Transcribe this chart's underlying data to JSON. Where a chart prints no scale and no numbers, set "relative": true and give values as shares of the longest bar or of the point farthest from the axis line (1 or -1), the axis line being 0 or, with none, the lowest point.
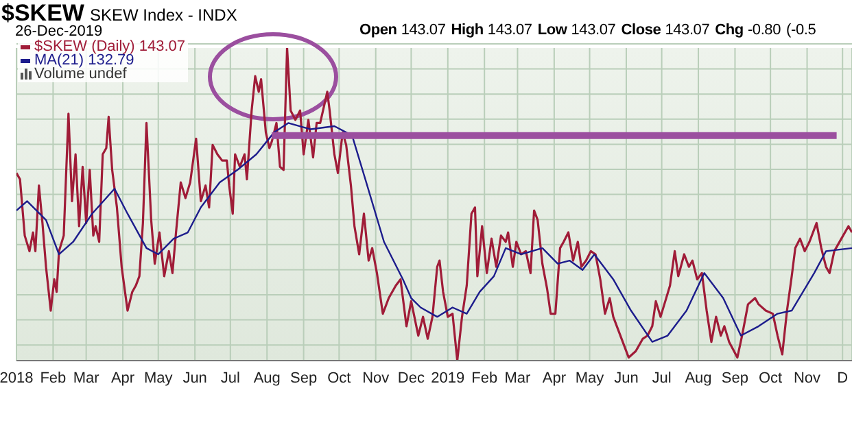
{
  "chart_data": {
    "type": "line",
    "title": "$SKEW",
    "subtitle": "SKEW Index - INDX",
    "relative": true,
    "legend": "top left",
    "grid": true,
    "marker": "none",
    "line_style": "solid",
    "annotations": [
      "26-Dec-2019",
      "Open 143.07 High 143.07 Low 143.07 Close 143.07 Chg -0.80 (-0.5",
      "Volume undef"
    ],
    "xlim": [
      "2018-01-01",
      "2019-12-09"
    ],
    "xticks": [
      {
        "value": "2018-01-01",
        "label": "2018"
      },
      {
        "value": "2018-02-01",
        "label": "Feb"
      },
      {
        "value": "2018-03-01",
        "label": "Mar"
      },
      {
        "value": "2018-04-01",
        "label": "Apr"
      },
      {
        "value": "2018-05-01",
        "label": "May"
      },
      {
        "value": "2018-06-01",
        "label": "Jun"
      },
      {
        "value": "2018-07-01",
        "label": "Jul"
      },
      {
        "value": "2018-08-01",
        "label": "Aug"
      },
      {
        "value": "2018-09-01",
        "label": "Sep"
      },
      {
        "value": "2018-10-01",
        "label": "Oct"
      },
      {
        "value": "2018-11-01",
        "label": "Nov"
      },
      {
        "value": "2018-12-01",
        "label": "Dec"
      },
      {
        "value": "2019-01-01",
        "label": "2019"
      },
      {
        "value": "2019-02-01",
        "label": "Feb"
      },
      {
        "value": "2019-03-01",
        "label": "Mar"
      },
      {
        "value": "2019-04-01",
        "label": "Apr"
      },
      {
        "value": "2019-05-01",
        "label": "May"
      },
      {
        "value": "2019-06-01",
        "label": "Jun"
      },
      {
        "value": "2019-07-01",
        "label": "Jul"
      },
      {
        "value": "2019-08-01",
        "label": "Aug"
      },
      {
        "value": "2019-09-01",
        "label": "Sep"
      },
      {
        "value": "2019-10-01",
        "label": "Oct"
      },
      {
        "value": "2019-11-01",
        "label": "Nov"
      },
      {
        "value": "2019-12-01",
        "label": "D"
      }
    ],
    "series": [
      {
        "name": "$SKEW (Daily) 143.07",
        "color": "#a01c38",
        "x": [
          "2018-01-01",
          "2018-01-04",
          "2018-01-08",
          "2018-01-12",
          "2018-01-15",
          "2018-01-17",
          "2018-01-20",
          "2018-01-23",
          "2018-01-26",
          "2018-01-30",
          "2018-02-02",
          "2018-02-04",
          "2018-02-06",
          "2018-02-10",
          "2018-02-14",
          "2018-02-17",
          "2018-02-20",
          "2018-02-23",
          "2018-02-26",
          "2018-03-01",
          "2018-03-04",
          "2018-03-07",
          "2018-03-09",
          "2018-03-12",
          "2018-03-15",
          "2018-03-18",
          "2018-03-20",
          "2018-03-23",
          "2018-03-27",
          "2018-03-31",
          "2018-04-05",
          "2018-04-09",
          "2018-04-12",
          "2018-04-15",
          "2018-04-18",
          "2018-04-21",
          "2018-04-25",
          "2018-04-28",
          "2018-05-02",
          "2018-05-06",
          "2018-05-10",
          "2018-05-13",
          "2018-05-16",
          "2018-05-20",
          "2018-05-24",
          "2018-05-28",
          "2018-06-02",
          "2018-06-06",
          "2018-06-10",
          "2018-06-13",
          "2018-06-16",
          "2018-06-20",
          "2018-06-24",
          "2018-06-28",
          "2018-06-30",
          "2018-07-03",
          "2018-07-05",
          "2018-07-09",
          "2018-07-13",
          "2018-07-15",
          "2018-07-19",
          "2018-07-22",
          "2018-07-25",
          "2018-07-27",
          "2018-07-31",
          "2018-08-03",
          "2018-08-05",
          "2018-08-09",
          "2018-08-12",
          "2018-08-15",
          "2018-08-18",
          "2018-08-21",
          "2018-08-25",
          "2018-08-29",
          "2018-09-01",
          "2018-09-05",
          "2018-09-09",
          "2018-09-12",
          "2018-09-15",
          "2018-09-21",
          "2018-09-23",
          "2018-09-27",
          "2018-09-30",
          "2018-10-04",
          "2018-10-07",
          "2018-10-11",
          "2018-10-14",
          "2018-10-18",
          "2018-10-22",
          "2018-10-26",
          "2018-10-29",
          "2018-11-02",
          "2018-11-07",
          "2018-11-12",
          "2018-11-18",
          "2018-11-22",
          "2018-11-27",
          "2018-12-01",
          "2018-12-07",
          "2018-12-11",
          "2018-12-15",
          "2018-12-19",
          "2018-12-23",
          "2018-12-25",
          "2018-12-28",
          "2019-01-01",
          "2019-01-05",
          "2019-01-09",
          "2019-01-13",
          "2019-01-17",
          "2019-01-21",
          "2019-01-24",
          "2019-01-26",
          "2019-01-30",
          "2019-02-03",
          "2019-02-07",
          "2019-02-11",
          "2019-02-15",
          "2019-02-19",
          "2019-02-21",
          "2019-02-25",
          "2019-02-28",
          "2019-03-04",
          "2019-03-08",
          "2019-03-12",
          "2019-03-15",
          "2019-03-18",
          "2019-03-22",
          "2019-03-26",
          "2019-03-29",
          "2019-04-02",
          "2019-04-06",
          "2019-04-09",
          "2019-04-13",
          "2019-04-17",
          "2019-04-21",
          "2019-04-24",
          "2019-04-28",
          "2019-05-02",
          "2019-05-06",
          "2019-05-10",
          "2019-05-14",
          "2019-05-18",
          "2019-05-21",
          "2019-05-25",
          "2019-05-29",
          "2019-06-03",
          "2019-06-09",
          "2019-06-15",
          "2019-06-19",
          "2019-06-23",
          "2019-06-26",
          "2019-06-30",
          "2019-07-04",
          "2019-07-08",
          "2019-07-12",
          "2019-07-15",
          "2019-07-20",
          "2019-07-24",
          "2019-07-27",
          "2019-07-31",
          "2019-08-04",
          "2019-08-08",
          "2019-08-12",
          "2019-08-16",
          "2019-08-20",
          "2019-08-23",
          "2019-08-27",
          "2019-09-03",
          "2019-09-07",
          "2019-09-12",
          "2019-09-18",
          "2019-09-21",
          "2019-09-27",
          "2019-10-03",
          "2019-10-07",
          "2019-10-11",
          "2019-10-15",
          "2019-10-19",
          "2019-10-22",
          "2019-10-26",
          "2019-10-30",
          "2019-11-03",
          "2019-11-09",
          "2019-11-13",
          "2019-11-17",
          "2019-11-20",
          "2019-11-24",
          "2019-11-30",
          "2019-12-06",
          "2019-12-09"
        ],
        "values": [
          0.6,
          0.58,
          0.4,
          0.35,
          0.41,
          0.35,
          0.56,
          0.44,
          0.3,
          0.16,
          0.26,
          0.22,
          0.35,
          0.4,
          0.79,
          0.51,
          0.66,
          0.43,
          0.62,
          0.44,
          0.61,
          0.4,
          0.43,
          0.38,
          0.66,
          0.68,
          0.78,
          0.61,
          0.49,
          0.3,
          0.16,
          0.22,
          0.24,
          0.27,
          0.44,
          0.76,
          0.45,
          0.31,
          0.41,
          0.27,
          0.35,
          0.28,
          0.41,
          0.57,
          0.52,
          0.57,
          0.71,
          0.51,
          0.56,
          0.49,
          0.69,
          0.66,
          0.64,
          0.64,
          0.56,
          0.47,
          0.66,
          0.62,
          0.66,
          0.58,
          0.8,
          0.91,
          0.86,
          0.9,
          0.73,
          0.68,
          0.7,
          0.76,
          0.62,
          0.61,
          1.0,
          0.8,
          0.77,
          0.8,
          0.66,
          0.77,
          0.65,
          0.76,
          0.76,
          0.86,
          0.8,
          0.66,
          0.6,
          0.73,
          0.69,
          0.56,
          0.43,
          0.34,
          0.47,
          0.32,
          0.36,
          0.28,
          0.15,
          0.2,
          0.24,
          0.26,
          0.11,
          0.19,
          0.08,
          0.14,
          0.07,
          0.14,
          0.3,
          0.32,
          0.22,
          0.14,
          0.15,
          0.0,
          0.14,
          0.24,
          0.47,
          0.49,
          0.27,
          0.43,
          0.28,
          0.39,
          0.3,
          0.4,
          0.38,
          0.41,
          0.3,
          0.38,
          0.34,
          0.35,
          0.28,
          0.48,
          0.45,
          0.31,
          0.23,
          0.15,
          0.15,
          0.36,
          0.38,
          0.41,
          0.32,
          0.38,
          0.3,
          0.32,
          0.35,
          0.34,
          0.26,
          0.15,
          0.2,
          0.14,
          0.1,
          0.06,
          0.01,
          0.03,
          0.07,
          0.08,
          0.11,
          0.19,
          0.14,
          0.19,
          0.24,
          0.35,
          0.27,
          0.34,
          0.3,
          0.32,
          0.26,
          0.28,
          0.16,
          0.06,
          0.14,
          0.08,
          0.11,
          0.06,
          0.01,
          0.08,
          0.18,
          0.2,
          0.18,
          0.16,
          0.15,
          0.08,
          0.02,
          0.16,
          0.27,
          0.36,
          0.39,
          0.35,
          0.38,
          0.44,
          0.36,
          0.3,
          0.28,
          0.35,
          0.39,
          0.43,
          0.41
        ]
      },
      {
        "name": "MA(21) 132.79",
        "color": "#1c1c8c",
        "x": [
          "2018-01-01",
          "2018-01-10",
          "2018-01-26",
          "2018-02-06",
          "2018-02-18",
          "2018-03-06",
          "2018-03-25",
          "2018-04-05",
          "2018-04-21",
          "2018-05-01",
          "2018-05-14",
          "2018-05-26",
          "2018-06-06",
          "2018-06-22",
          "2018-07-07",
          "2018-07-23",
          "2018-08-07",
          "2018-08-19",
          "2018-09-07",
          "2018-09-27",
          "2018-10-12",
          "2018-10-24",
          "2018-11-08",
          "2018-11-24",
          "2018-12-01",
          "2018-12-09",
          "2018-12-23",
          "2019-01-05",
          "2019-01-17",
          "2019-01-28",
          "2019-02-09",
          "2019-02-19",
          "2019-03-04",
          "2019-03-22",
          "2019-04-04",
          "2019-04-14",
          "2019-04-25",
          "2019-05-05",
          "2019-05-21",
          "2019-06-05",
          "2019-06-23",
          "2019-07-06",
          "2019-07-22",
          "2019-08-06",
          "2019-08-22",
          "2019-09-06",
          "2019-09-21",
          "2019-10-07",
          "2019-10-19",
          "2019-11-07",
          "2019-11-17",
          "2019-12-09"
        ],
        "values": [
          0.48,
          0.51,
          0.45,
          0.34,
          0.38,
          0.47,
          0.55,
          0.47,
          0.36,
          0.34,
          0.39,
          0.41,
          0.49,
          0.57,
          0.61,
          0.66,
          0.73,
          0.76,
          0.74,
          0.75,
          0.72,
          0.57,
          0.38,
          0.26,
          0.2,
          0.17,
          0.14,
          0.17,
          0.15,
          0.22,
          0.27,
          0.36,
          0.34,
          0.36,
          0.31,
          0.32,
          0.29,
          0.34,
          0.26,
          0.16,
          0.06,
          0.08,
          0.16,
          0.28,
          0.2,
          0.08,
          0.11,
          0.15,
          0.16,
          0.28,
          0.35,
          0.36
        ]
      },
      {
        "type": "line",
        "color": "#9b4f9f",
        "x": [
          "2018-08-05",
          "2019-11-26"
        ],
        "values": [
          0.72,
          0.72
        ]
      }
    ]
  }
}
